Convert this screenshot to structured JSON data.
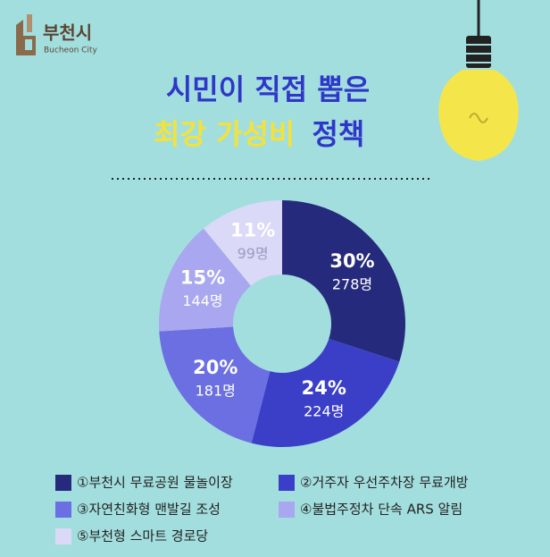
{
  "logo": {
    "name": "부천시",
    "sub": "Bucheon City"
  },
  "chart_data": {
    "type": "donut",
    "title": "시민이 직접 뽑은",
    "subtitle": {
      "highlight": "최강 가성비",
      "rest": "정책"
    },
    "categories": [
      "①부천시 무료공원 물놀이장",
      "②거주자 우선주차장 무료개방",
      "③자연친화형 맨발길 조성",
      "④불법주정차  단속 ARS 알림",
      "⑤부천형 스마트 경로당"
    ],
    "values": [
      30,
      24,
      20,
      15,
      11
    ],
    "value_labels": [
      "30%",
      "24%",
      "20%",
      "15%",
      "11%"
    ],
    "counts": [
      278,
      224,
      181,
      144,
      99
    ],
    "count_labels": [
      "278명",
      "224명",
      "181명",
      "144명",
      "99명"
    ],
    "colors": [
      "#262a7c",
      "#3b3fc8",
      "#6b6fe2",
      "#a8a7ef",
      "#dad9f7"
    ]
  }
}
